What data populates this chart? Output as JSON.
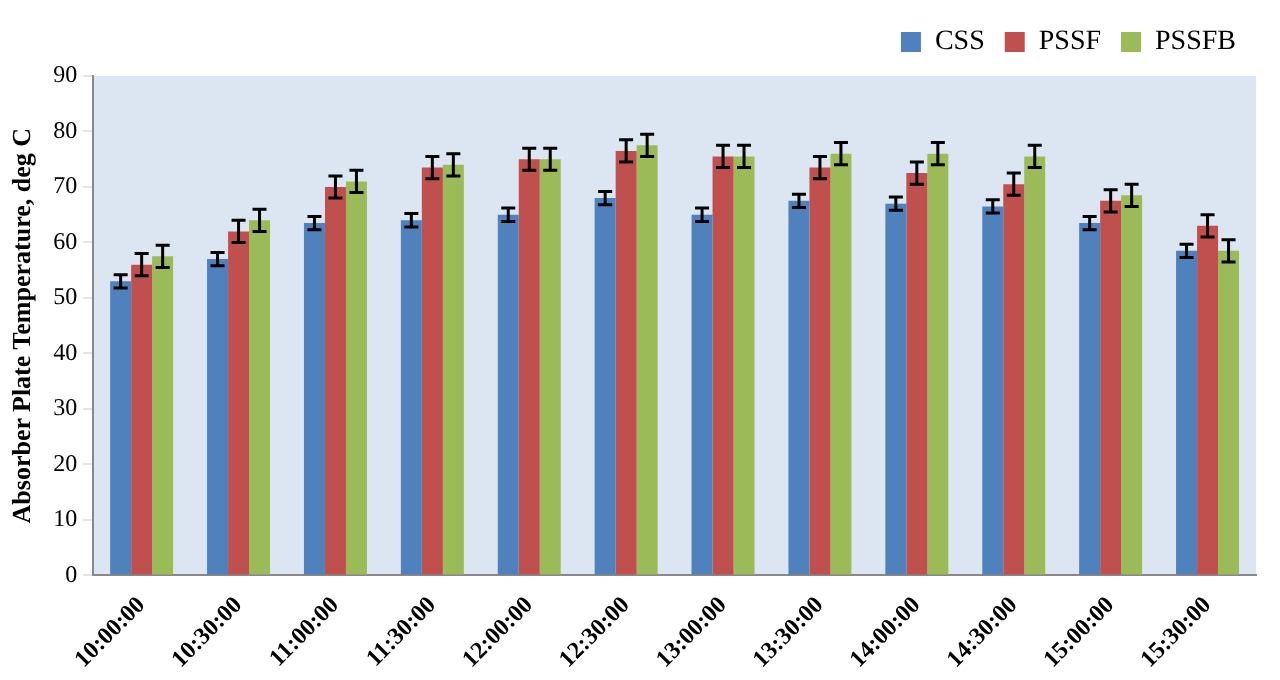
{
  "chart_data": {
    "type": "bar",
    "ylabel": "Absorber Plate Temperature, deg C",
    "categories": [
      "10:00:00",
      "10:30:00",
      "11:00:00",
      "11:30:00",
      "12:00:00",
      "12:30:00",
      "13:00:00",
      "13:30:00",
      "14:00:00",
      "14:30:00",
      "15:00:00",
      "15:30:00"
    ],
    "series": [
      {
        "name": "CSS",
        "color": "#4f81bd",
        "values": [
          53,
          57,
          63.5,
          64,
          65,
          68,
          65,
          67.5,
          67,
          66.5,
          63.5,
          58.5
        ],
        "errors": [
          1.2,
          1.2,
          1.2,
          1.2,
          1.2,
          1.2,
          1.2,
          1.2,
          1.2,
          1.2,
          1.2,
          1.2
        ]
      },
      {
        "name": "PSSF",
        "color": "#c0504d",
        "values": [
          56,
          62,
          70,
          73.5,
          75,
          76.5,
          75.5,
          73.5,
          72.5,
          70.5,
          67.5,
          63
        ],
        "errors": [
          2,
          2,
          2,
          2,
          2,
          2,
          2,
          2,
          2,
          2,
          2,
          2
        ]
      },
      {
        "name": "PSSFB",
        "color": "#9bbb59",
        "values": [
          57.5,
          64,
          71,
          74,
          75,
          77.5,
          75.5,
          76,
          76,
          75.5,
          68.5,
          58.5
        ],
        "errors": [
          2,
          2,
          2,
          2,
          2,
          2,
          2,
          2,
          2,
          2,
          2,
          2
        ]
      }
    ],
    "ylim": [
      0,
      90
    ],
    "yticks": [
      0,
      10,
      20,
      30,
      40,
      50,
      60,
      70,
      80,
      90
    ],
    "grid": false,
    "legend": "top right"
  }
}
